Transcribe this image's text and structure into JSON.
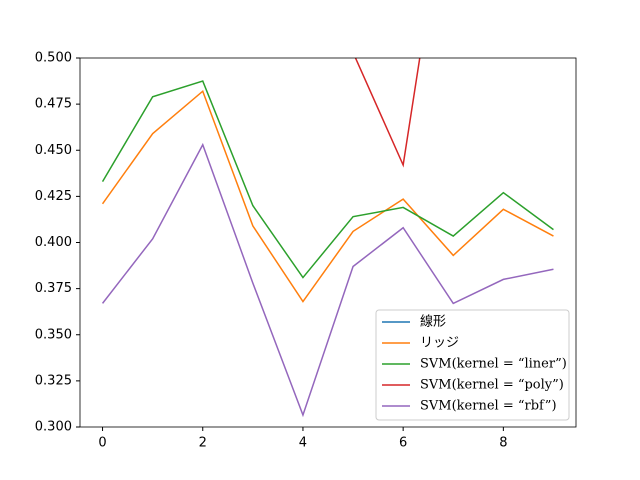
{
  "chart_data": {
    "type": "line",
    "x": [
      0,
      1,
      2,
      3,
      4,
      5,
      6,
      7,
      8,
      9
    ],
    "series": [
      {
        "name": "線形",
        "color": "#1f77b4",
        "values": [
          null,
          null,
          null,
          null,
          null,
          null,
          null,
          null,
          null,
          null
        ]
      },
      {
        "name": "リッジ",
        "color": "#ff7f0e",
        "values": [
          0.421,
          0.459,
          0.482,
          0.409,
          0.368,
          0.406,
          0.4235,
          0.393,
          0.418,
          0.4035
        ]
      },
      {
        "name": "SVM(kernel = “liner”)",
        "color": "#2ca02c",
        "values": [
          0.433,
          0.479,
          0.4875,
          0.42,
          0.381,
          0.414,
          0.419,
          0.4035,
          0.427,
          0.407
        ]
      },
      {
        "name": "SVM(kernel = “poly”)",
        "color": "#d62728",
        "values": [
          null,
          null,
          null,
          null,
          null,
          0.503,
          0.442,
          0.617,
          null,
          null
        ]
      },
      {
        "name": "SVM(kernel = “rbf”)",
        "color": "#9467bd",
        "values": [
          0.367,
          0.402,
          0.453,
          0.378,
          0.3065,
          0.387,
          0.408,
          0.367,
          0.38,
          0.3855
        ]
      }
    ],
    "xlim": [
      -0.45,
      9.45
    ],
    "ylim": [
      0.3,
      0.5
    ],
    "xticks": [
      0,
      2,
      4,
      6,
      8
    ],
    "yticks": [
      {
        "value": 0.3,
        "label": "0.300"
      },
      {
        "value": 0.325,
        "label": "0.325"
      },
      {
        "value": 0.35,
        "label": "0.350"
      },
      {
        "value": 0.375,
        "label": "0.375"
      },
      {
        "value": 0.4,
        "label": "0.400"
      },
      {
        "value": 0.425,
        "label": "0.425"
      },
      {
        "value": 0.45,
        "label": "0.450"
      },
      {
        "value": 0.475,
        "label": "0.475"
      },
      {
        "value": 0.5,
        "label": "0.500"
      }
    ],
    "legend": "lower right"
  }
}
